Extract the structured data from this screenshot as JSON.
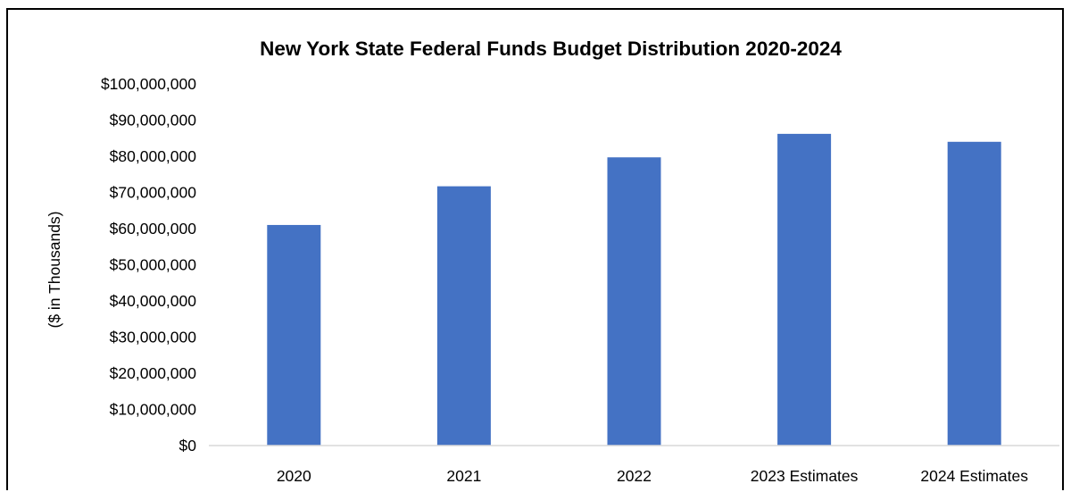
{
  "chart_data": {
    "type": "bar",
    "title": "New York State Federal Funds Budget Distribution 2020-2024",
    "xlabel": "",
    "ylabel": "($ in Thousands)",
    "categories": [
      "2020",
      "2021",
      "2022",
      "2023 Estimates",
      "2024 Estimates"
    ],
    "values": [
      61000000,
      71700000,
      79700000,
      86200000,
      84000000
    ],
    "ylim": [
      0,
      100000000
    ],
    "y_ticks": [
      "$0",
      "$10,000,000",
      "$20,000,000",
      "$30,000,000",
      "$40,000,000",
      "$50,000,000",
      "$60,000,000",
      "$70,000,000",
      "$80,000,000",
      "$90,000,000",
      "$100,000,000"
    ],
    "grid": false,
    "legend": "none",
    "bar_color": "#4472C4"
  }
}
